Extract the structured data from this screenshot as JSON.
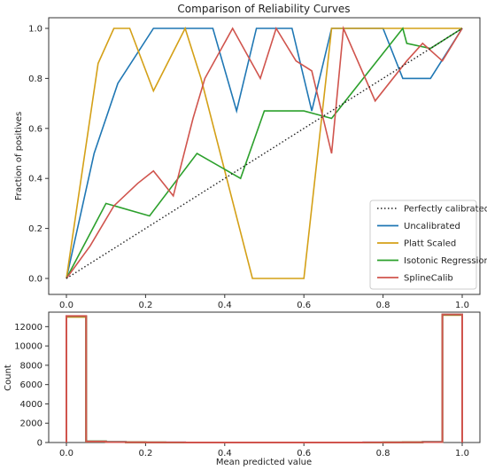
{
  "chart_data": [
    {
      "type": "line",
      "title": "Comparison of Reliability Curves",
      "xlabel": "",
      "ylabel": "Fraction of positives",
      "xlim": [
        0.0,
        1.0
      ],
      "ylim": [
        0.0,
        1.0
      ],
      "xticks": [
        "0.0",
        "0.2",
        "0.4",
        "0.6",
        "0.8",
        "1.0"
      ],
      "yticks": [
        "0.0",
        "0.2",
        "0.4",
        "0.6",
        "0.8",
        "1.0"
      ],
      "legend_position": "lower-right",
      "series": [
        {
          "name": "Perfectly calibrated",
          "color": "#222222",
          "style": "dotted",
          "points": [
            [
              0.0,
              0.0
            ],
            [
              1.0,
              1.0
            ]
          ]
        },
        {
          "name": "Uncalibrated",
          "color": "#1f77b4",
          "style": "solid",
          "points": [
            [
              0.0,
              0.0
            ],
            [
              0.07,
              0.5
            ],
            [
              0.13,
              0.78
            ],
            [
              0.22,
              1.0
            ],
            [
              0.37,
              1.0
            ],
            [
              0.43,
              0.67
            ],
            [
              0.48,
              1.0
            ],
            [
              0.57,
              1.0
            ],
            [
              0.62,
              0.67
            ],
            [
              0.67,
              1.0
            ],
            [
              0.8,
              1.0
            ],
            [
              0.85,
              0.8
            ],
            [
              0.92,
              0.8
            ],
            [
              1.0,
              1.0
            ]
          ]
        },
        {
          "name": "Platt Scaled",
          "color": "#d4a017",
          "style": "solid",
          "points": [
            [
              0.0,
              0.0
            ],
            [
              0.08,
              0.86
            ],
            [
              0.12,
              1.0
            ],
            [
              0.16,
              1.0
            ],
            [
              0.22,
              0.75
            ],
            [
              0.3,
              1.0
            ],
            [
              0.34,
              0.8
            ],
            [
              0.47,
              0.0
            ],
            [
              0.6,
              0.0
            ],
            [
              0.67,
              1.0
            ],
            [
              1.0,
              1.0
            ]
          ]
        },
        {
          "name": "Isotonic Regression",
          "color": "#2ca02c",
          "style": "solid",
          "points": [
            [
              0.0,
              0.0
            ],
            [
              0.1,
              0.3
            ],
            [
              0.21,
              0.25
            ],
            [
              0.33,
              0.5
            ],
            [
              0.44,
              0.4
            ],
            [
              0.5,
              0.67
            ],
            [
              0.6,
              0.67
            ],
            [
              0.67,
              0.64
            ],
            [
              0.85,
              1.0
            ],
            [
              0.86,
              0.94
            ],
            [
              0.92,
              0.92
            ],
            [
              1.0,
              1.0
            ]
          ]
        },
        {
          "name": "SplineCalib",
          "color": "#d0544d",
          "style": "solid",
          "points": [
            [
              0.0,
              0.0
            ],
            [
              0.06,
              0.13
            ],
            [
              0.12,
              0.29
            ],
            [
              0.18,
              0.38
            ],
            [
              0.22,
              0.43
            ],
            [
              0.27,
              0.33
            ],
            [
              0.32,
              0.64
            ],
            [
              0.35,
              0.8
            ],
            [
              0.42,
              1.0
            ],
            [
              0.49,
              0.8
            ],
            [
              0.53,
              1.0
            ],
            [
              0.58,
              0.87
            ],
            [
              0.62,
              0.83
            ],
            [
              0.67,
              0.5
            ],
            [
              0.7,
              1.0
            ],
            [
              0.78,
              0.71
            ],
            [
              0.86,
              0.87
            ],
            [
              0.9,
              0.94
            ],
            [
              0.95,
              0.87
            ],
            [
              1.0,
              1.0
            ]
          ]
        }
      ]
    },
    {
      "type": "histogram",
      "title": "",
      "xlabel": "Mean predicted value",
      "ylabel": "Count",
      "xlim": [
        0.0,
        1.0
      ],
      "ylim": [
        0,
        13500
      ],
      "xticks": [
        "0.0",
        "0.2",
        "0.4",
        "0.6",
        "0.8",
        "1.0"
      ],
      "yticks": [
        "0",
        "2000",
        "4000",
        "6000",
        "8000",
        "10000",
        "12000"
      ],
      "bin_edges": [
        0.0,
        0.05,
        0.1,
        0.15,
        0.2,
        0.25,
        0.3,
        0.35,
        0.4,
        0.45,
        0.5,
        0.55,
        0.6,
        0.65,
        0.7,
        0.75,
        0.8,
        0.85,
        0.9,
        0.95,
        1.0
      ],
      "series": [
        {
          "color": "#1f77b4",
          "counts": [
            13050,
            120,
            60,
            20,
            10,
            5,
            0,
            0,
            0,
            0,
            0,
            0,
            0,
            0,
            0,
            5,
            10,
            20,
            60,
            13250
          ]
        },
        {
          "color": "#d4a017",
          "counts": [
            13000,
            100,
            50,
            15,
            5,
            0,
            0,
            0,
            0,
            0,
            0,
            0,
            0,
            0,
            0,
            0,
            5,
            15,
            50,
            13200
          ]
        },
        {
          "color": "#2ca02c",
          "counts": [
            13080,
            110,
            55,
            18,
            8,
            3,
            0,
            0,
            0,
            0,
            0,
            0,
            0,
            0,
            0,
            3,
            8,
            18,
            55,
            13230
          ]
        },
        {
          "color": "#d0544d",
          "counts": [
            13100,
            100,
            50,
            20,
            10,
            5,
            0,
            0,
            0,
            0,
            0,
            0,
            0,
            0,
            0,
            5,
            10,
            20,
            50,
            13260
          ]
        }
      ]
    }
  ]
}
